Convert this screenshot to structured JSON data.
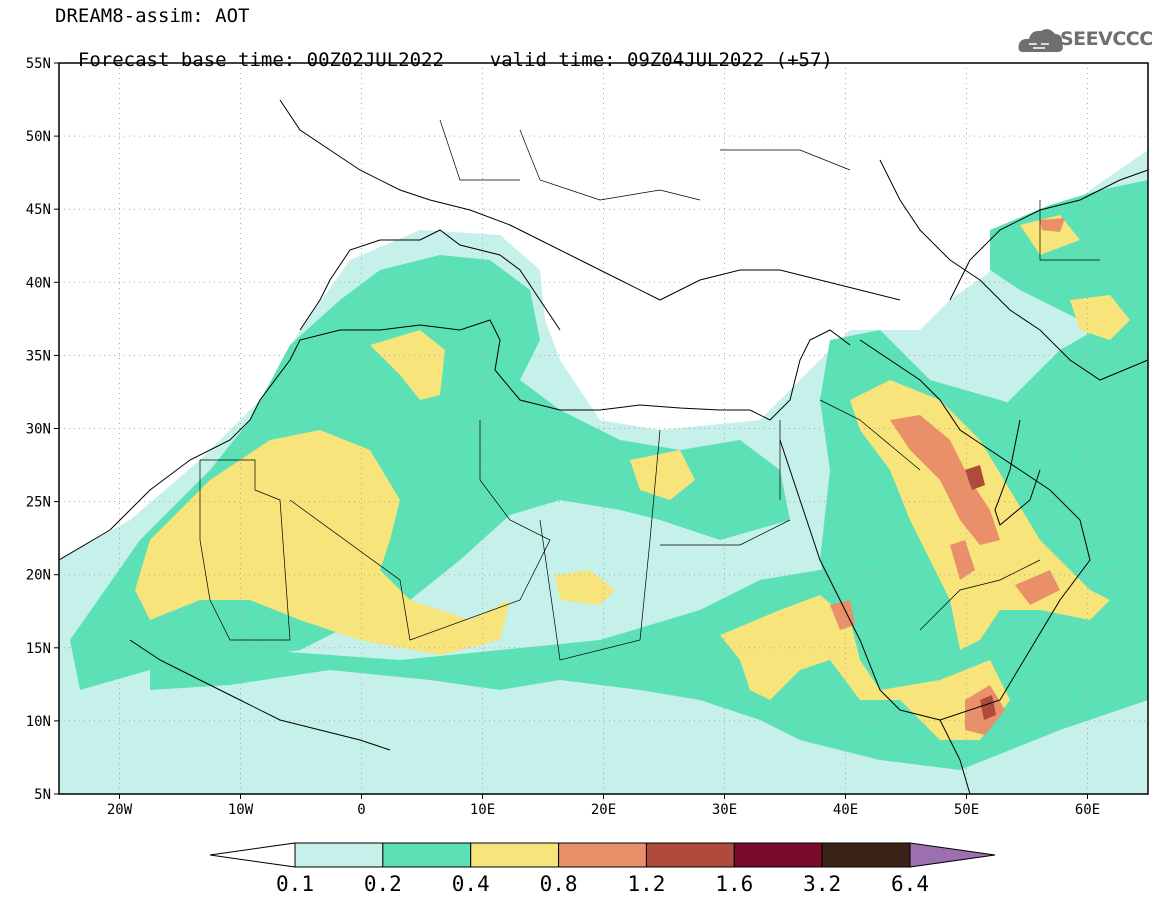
{
  "header": {
    "title_line1": "DREAM8-assim: AOT",
    "base_time_label": "Forecast base time: 00Z02JUL2022",
    "valid_time_label": "valid time: 09Z04JUL2022 (+57)"
  },
  "logo": {
    "text": "SEEVCCC",
    "icon": "cloud-icon"
  },
  "map": {
    "lon_range": [
      -25,
      65
    ],
    "lat_range": [
      5,
      55
    ],
    "lat_ticks": [
      {
        "value": 55,
        "label": "55N"
      },
      {
        "value": 50,
        "label": "50N"
      },
      {
        "value": 45,
        "label": "45N"
      },
      {
        "value": 40,
        "label": "40N"
      },
      {
        "value": 35,
        "label": "35N"
      },
      {
        "value": 30,
        "label": "30N"
      },
      {
        "value": 25,
        "label": "25N"
      },
      {
        "value": 20,
        "label": "20N"
      },
      {
        "value": 15,
        "label": "15N"
      },
      {
        "value": 10,
        "label": "10N"
      },
      {
        "value": 5,
        "label": "5N"
      }
    ],
    "lon_ticks": [
      {
        "value": -20,
        "label": "20W"
      },
      {
        "value": -10,
        "label": "10W"
      },
      {
        "value": 0,
        "label": "0"
      },
      {
        "value": 10,
        "label": "10E"
      },
      {
        "value": 20,
        "label": "20E"
      },
      {
        "value": 30,
        "label": "30E"
      },
      {
        "value": 40,
        "label": "40E"
      },
      {
        "value": 50,
        "label": "50E"
      },
      {
        "value": 60,
        "label": "60E"
      }
    ],
    "grid": true,
    "grid_style": "dotted"
  },
  "colorbar": {
    "levels": [
      "0.1",
      "0.2",
      "0.4",
      "0.8",
      "1.2",
      "1.6",
      "3.2",
      "6.4"
    ],
    "colors": [
      "#ffffff",
      "#c6f0ea",
      "#5ce0b6",
      "#f7e47a",
      "#e9906a",
      "#b04a3c",
      "#7a0a2a",
      "#3a2418",
      "#9b6fb0"
    ]
  }
}
